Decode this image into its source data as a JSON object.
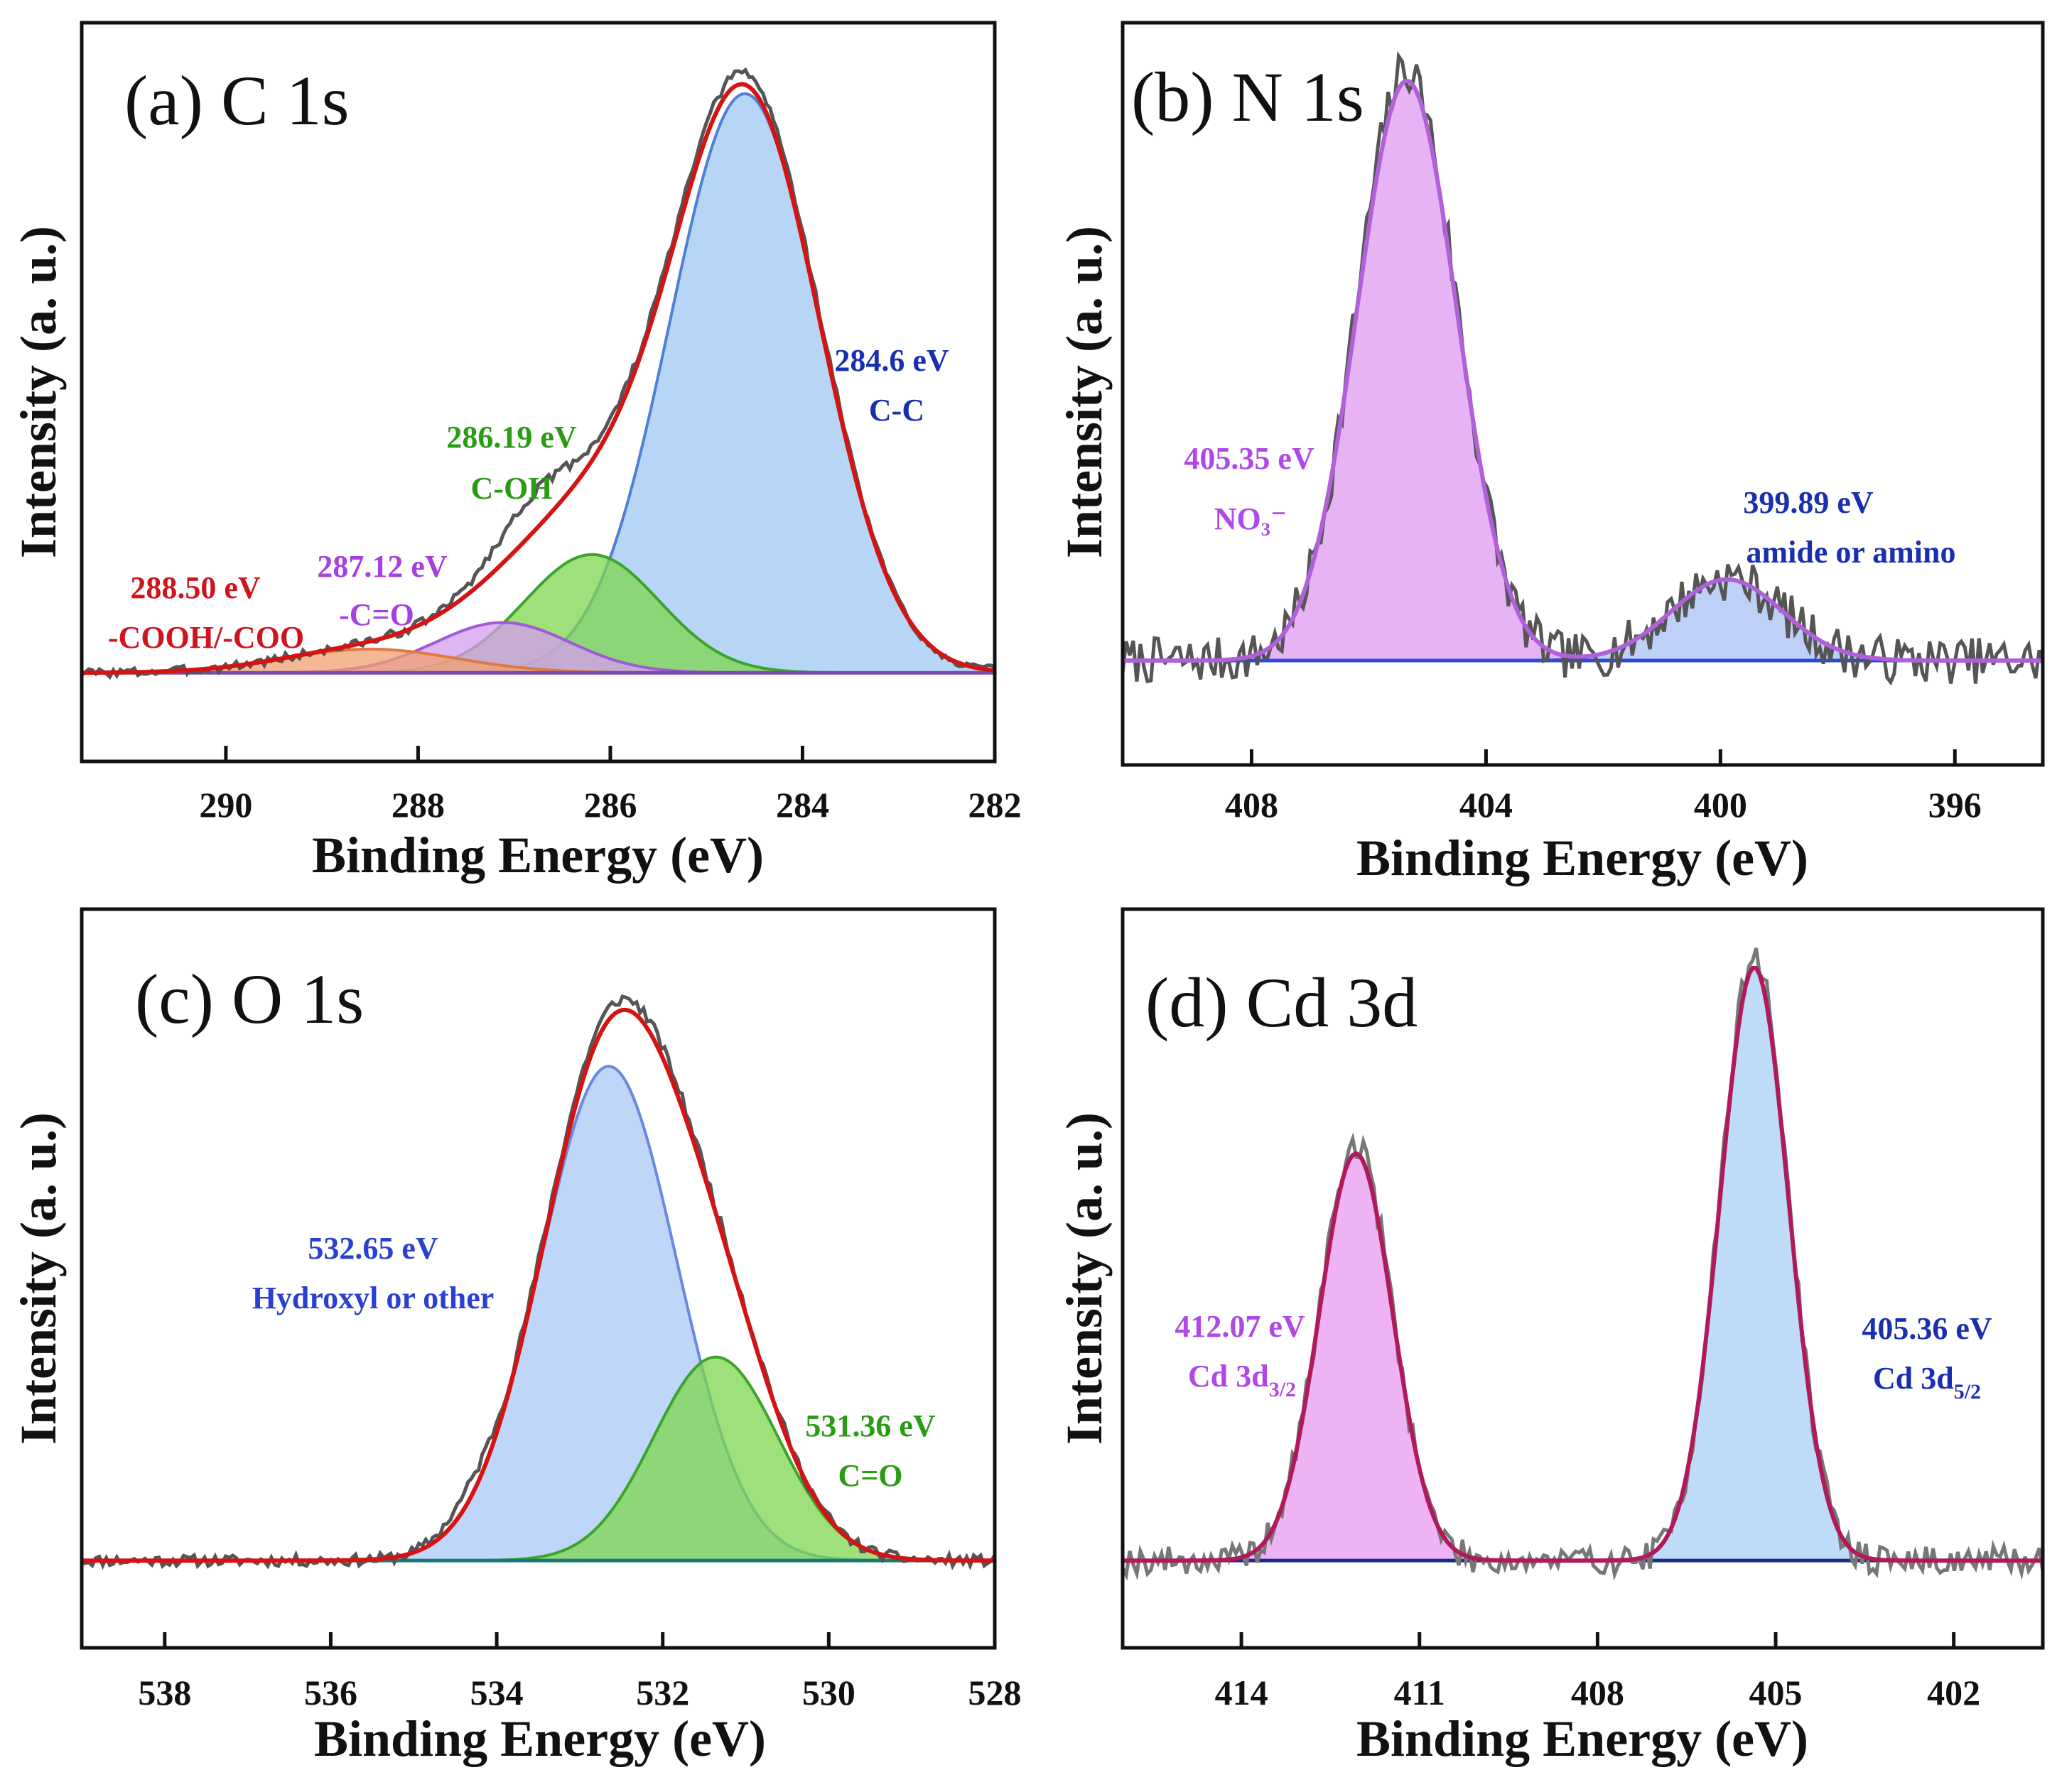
{
  "chart_data": [
    {
      "type": "area",
      "panel": "a",
      "title": "(a) C 1s",
      "xlabel": "Binding Energy (eV)",
      "ylabel": "Intensity (a. u.)",
      "xlim": [
        291.5,
        282
      ],
      "ylim": [
        -0.15,
        1.1
      ],
      "xticks": [
        290,
        288,
        286,
        284,
        282
      ],
      "baseline": 0.0,
      "raw_seed": 3,
      "raw_noise": 0.008,
      "raw_bumps": [
        {
          "center": 286.8,
          "height": 0.06,
          "width": 0.4
        }
      ],
      "peaks": [
        {
          "center": 284.6,
          "height": 0.98,
          "width": 0.78,
          "fill": "#9fc8f2",
          "stroke": "#4f7fd6",
          "label_value": "284.6 eV",
          "label_name": "C-C",
          "label_color": "#1a2fb0"
        },
        {
          "center": 286.19,
          "height": 0.2,
          "width": 0.7,
          "fill": "#7ed64d",
          "stroke": "#3aa52a",
          "label_value": "286.19 eV",
          "label_name": "C-OH",
          "label_color": "#2a9b14"
        },
        {
          "center": 287.12,
          "height": 0.085,
          "width": 0.7,
          "fill": "#d59cf0",
          "stroke": "#a05ad6",
          "label_value": "287.12 eV",
          "label_name": "-C=O",
          "label_color": "#a640e0"
        },
        {
          "center": 288.5,
          "height": 0.04,
          "width": 0.9,
          "fill": "#f0a070",
          "stroke": "#e07a40",
          "label_value": "288.50 eV",
          "label_name": "-COOH/-COO",
          "label_color": "#d0141e"
        }
      ],
      "envelope_color": "#d41414",
      "raw_color": "#555555"
    },
    {
      "type": "area",
      "panel": "b",
      "title": "(b) N 1s",
      "xlabel": "Binding Energy (eV)",
      "ylabel": "Intensity (a. u.)",
      "xlim": [
        410.2,
        394.5
      ],
      "ylim": [
        -0.18,
        1.1
      ],
      "xticks": [
        408,
        404,
        400,
        396
      ],
      "baseline": 0.0,
      "raw_seed": 7,
      "raw_noise": 0.04,
      "raw_bumps": [],
      "peaks": [
        {
          "center": 405.35,
          "height": 1.0,
          "width": 0.85,
          "fill": "#e09af0",
          "stroke": "#a04ad0",
          "label_value": "405.35 eV",
          "label_name": "NO₃⁻",
          "label_color": "#b048e8"
        },
        {
          "center": 399.89,
          "height": 0.14,
          "width": 0.95,
          "fill": "#a8c0f4",
          "stroke": "#5a4ab8",
          "label_value": "399.89 eV",
          "label_name": "amide or amino",
          "label_color": "#1a2fb0"
        }
      ],
      "envelope_color": "#b060d8",
      "baseline_color": "#2a4ad8",
      "raw_color": "#555555"
    },
    {
      "type": "area",
      "panel": "c",
      "title": "(c) O 1s",
      "xlabel": "Binding Energy (eV)",
      "ylabel": "Intensity (a. u.)",
      "xlim": [
        539,
        528
      ],
      "ylim": [
        -0.15,
        1.12
      ],
      "xticks": [
        538,
        536,
        534,
        532,
        530,
        528
      ],
      "baseline": 0.0,
      "raw_seed": 11,
      "raw_noise": 0.01,
      "raw_bumps": [
        {
          "center": 534.3,
          "height": 0.025,
          "width": 0.3
        }
      ],
      "peaks": [
        {
          "center": 532.65,
          "height": 0.85,
          "width": 0.82,
          "fill": "#a8c8f4",
          "stroke": "#6a88e0",
          "label_value": "532.65 eV",
          "label_name": "Hydroxyl or other",
          "label_color": "#2a40d0"
        },
        {
          "center": 531.36,
          "height": 0.35,
          "width": 0.75,
          "fill": "#7ed64d",
          "stroke": "#3aa52a",
          "label_value": "531.36 eV",
          "label_name": "C=O",
          "label_color": "#2a9b14"
        }
      ],
      "envelope_color": "#d41414",
      "baseline_color": "#1a7a7a",
      "raw_color": "#555555"
    },
    {
      "type": "area",
      "panel": "d",
      "title": "(d) Cd 3d",
      "xlabel": "Binding Energy (eV)",
      "ylabel": "Intensity (a. u.)",
      "xlim": [
        416,
        400.5
      ],
      "ylim": [
        -0.15,
        1.12
      ],
      "xticks": [
        414,
        411,
        408,
        405,
        402
      ],
      "baseline": 0.0,
      "raw_seed": 19,
      "raw_noise": 0.025,
      "raw_bumps": [],
      "peaks": [
        {
          "center": 412.07,
          "height": 0.7,
          "width": 0.62,
          "fill": "#e79af0",
          "stroke": "#b02a80",
          "label_value": "412.07 eV",
          "label_name": "Cd 3d",
          "label_sub": "3/2",
          "label_color": "#b048e8"
        },
        {
          "center": 405.36,
          "height": 1.02,
          "width": 0.58,
          "fill": "#a8d0f4",
          "stroke": "#4a6ab0",
          "label_value": "405.36 eV",
          "label_name": "Cd 3d",
          "label_sub": "5/2",
          "label_color": "#1a2fb0"
        }
      ],
      "envelope_color": "#b01a5a",
      "baseline_color": "#1a2a8a",
      "raw_color": "#777777"
    }
  ]
}
